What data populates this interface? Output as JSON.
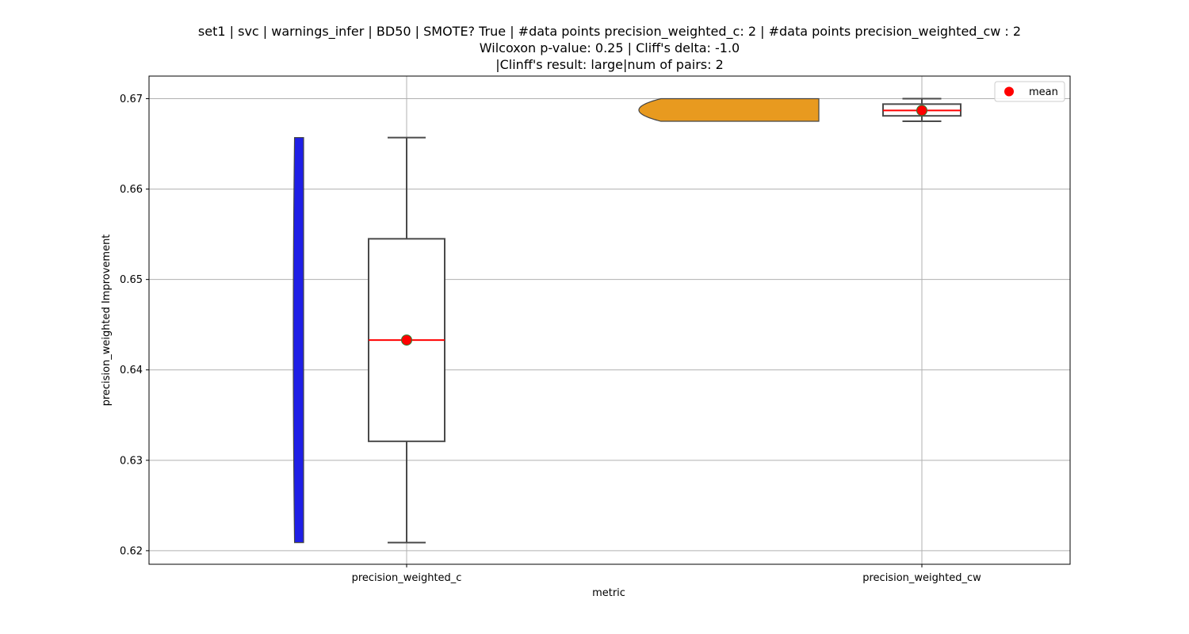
{
  "chart_data": {
    "type": "violin+box",
    "title_lines": [
      "set1 | svc | warnings_infer | BD50 | SMOTE? True | #data points precision_weighted_c: 2 | #data points precision_weighted_cw : 2",
      "Wilcoxon p-value: 0.25 | Cliff's delta: -1.0",
      "|Clinff's result: large|num of pairs: 2"
    ],
    "xlabel": "metric",
    "ylabel": "precision_weighted Improvement",
    "categories": [
      "precision_weighted_c",
      "precision_weighted_cw"
    ],
    "ylim": [
      0.6185,
      0.6725
    ],
    "yticks": [
      0.62,
      0.63,
      0.64,
      0.65,
      0.66,
      0.67
    ],
    "ytick_labels": [
      "0.62",
      "0.63",
      "0.64",
      "0.65",
      "0.66",
      "0.67"
    ],
    "grid": true,
    "legend": {
      "position": "top-right",
      "entries": [
        {
          "label": "mean",
          "color": "#ff0000",
          "marker": "circle"
        }
      ]
    },
    "series": [
      {
        "category": "precision_weighted_c",
        "violin_color": "#1f1fe6",
        "values": [
          0.6209,
          0.6657
        ],
        "box": {
          "whisker_low": 0.6209,
          "q1": 0.6321,
          "median": 0.6433,
          "q3": 0.6545,
          "whisker_high": 0.6657
        },
        "mean": 0.6433
      },
      {
        "category": "precision_weighted_cw",
        "violin_color": "#e89a1f",
        "values": [
          0.6675,
          0.67
        ],
        "box": {
          "whisker_low": 0.6675,
          "q1": 0.6681,
          "median": 0.6687,
          "q3": 0.6694,
          "whisker_high": 0.67
        },
        "mean": 0.6687
      }
    ],
    "colors": {
      "median_line": "#ff0000",
      "mean_marker": "#ff0000",
      "mean_edge": "#2e7d32",
      "box_edge": "#4a4a4a",
      "grid": "#b0b0b0"
    }
  }
}
